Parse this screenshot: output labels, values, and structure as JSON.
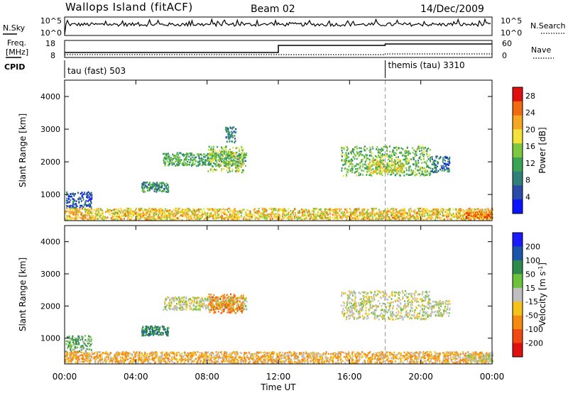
{
  "header": {
    "station": "Wallops Island (fitACF)",
    "beam": "Beam 02",
    "date": "14/Dec/2009"
  },
  "strip_labels": {
    "nsky": "N.Sky",
    "nsearch": "N.Search",
    "freq_top": "Freq.",
    "freq_unit": "[MHz]",
    "nave": "Nave",
    "cpid": "CPID"
  },
  "strip_ticks": {
    "noise_left": [
      "10^5",
      "10^0"
    ],
    "noise_right": [
      "10^5",
      "10^0"
    ],
    "freq_left": [
      "18",
      "8"
    ],
    "nave_right": [
      "60",
      "0"
    ]
  },
  "cpid_segments": [
    {
      "start_hour": 0,
      "label": "tau (fast) 503"
    },
    {
      "start_hour": 18,
      "label": "themis (tau) 3310"
    }
  ],
  "x_axis": {
    "label": "Time UT",
    "range_hours": [
      0,
      24
    ],
    "ticks": [
      {
        "hour": 0,
        "label": "00:00"
      },
      {
        "hour": 4,
        "label": "04:00"
      },
      {
        "hour": 8,
        "label": "08:00"
      },
      {
        "hour": 12,
        "label": "12:00"
      },
      {
        "hour": 16,
        "label": "16:00"
      },
      {
        "hour": 20,
        "label": "20:00"
      },
      {
        "hour": 24,
        "label": "00:00"
      }
    ]
  },
  "chart_data": [
    {
      "type": "heatmap",
      "name": "power",
      "ylabel": "Slant Range [km]",
      "ylim": [
        200,
        4500
      ],
      "yticks": [
        1000,
        2000,
        3000,
        4000
      ],
      "colorbar_label": "Power [dB]",
      "colorbar_ticks": [
        4,
        8,
        12,
        16,
        20,
        24,
        28
      ],
      "colorbar_range": [
        0,
        30
      ],
      "colors": [
        "#0a14ff",
        "#2a4aa8",
        "#2f7f7a",
        "#3aa354",
        "#7cc83f",
        "#f2e23a",
        "#f5a623",
        "#f06a10",
        "#e01010"
      ],
      "regions": [
        {
          "t": [
            5.5,
            10.2
          ],
          "r": [
            1900,
            2300
          ],
          "level": 12
        },
        {
          "t": [
            8.0,
            10.0
          ],
          "r": [
            1700,
            2500
          ],
          "level": 16
        },
        {
          "t": [
            9.0,
            9.6
          ],
          "r": [
            2600,
            3100
          ],
          "level": 8
        },
        {
          "t": [
            4.3,
            5.8
          ],
          "r": [
            1100,
            1400
          ],
          "level": 10
        },
        {
          "t": [
            0.0,
            1.5
          ],
          "r": [
            600,
            1100
          ],
          "level": 6
        },
        {
          "t": [
            15.5,
            20.5
          ],
          "r": [
            1600,
            2500
          ],
          "level": 14
        },
        {
          "t": [
            17.0,
            19.0
          ],
          "r": [
            1700,
            2100
          ],
          "level": 18
        },
        {
          "t": [
            20.5,
            21.6
          ],
          "r": [
            1700,
            2200
          ],
          "level": 8
        },
        {
          "t": [
            0.0,
            24.0
          ],
          "r": [
            250,
            600
          ],
          "level": 20
        },
        {
          "t": [
            22.5,
            24.0
          ],
          "r": [
            300,
            500
          ],
          "level": 24
        }
      ]
    },
    {
      "type": "heatmap",
      "name": "velocity",
      "ylabel": "Slant Range [km]",
      "ylim": [
        200,
        4500
      ],
      "yticks": [
        1000,
        2000,
        3000,
        4000
      ],
      "colorbar_label": "Velocity [m s^-1]",
      "colorbar_ticks": [
        200,
        100,
        50,
        15,
        -15,
        -50,
        -100,
        -200
      ],
      "colors": [
        "#1a1aff",
        "#1a55aa",
        "#2e8a4a",
        "#6cc23c",
        "#bfbfbf",
        "#f5c21a",
        "#f58a10",
        "#f04a10",
        "#e01010"
      ],
      "regions": [
        {
          "t": [
            5.5,
            10.2
          ],
          "r": [
            1900,
            2300
          ],
          "velocity": 0
        },
        {
          "t": [
            8.0,
            10.0
          ],
          "r": [
            1800,
            2400
          ],
          "velocity": -60
        },
        {
          "t": [
            4.3,
            5.8
          ],
          "r": [
            1100,
            1400
          ],
          "velocity": 60
        },
        {
          "t": [
            0.0,
            1.5
          ],
          "r": [
            600,
            1100
          ],
          "velocity": 30
        },
        {
          "t": [
            15.5,
            20.5
          ],
          "r": [
            1600,
            2500
          ],
          "velocity": 0
        },
        {
          "t": [
            20.5,
            21.6
          ],
          "r": [
            1700,
            2200
          ],
          "velocity": 0
        },
        {
          "t": [
            0.0,
            24.0
          ],
          "r": [
            250,
            600
          ],
          "velocity": -30
        },
        {
          "t": [
            22.5,
            24.0
          ],
          "r": [
            300,
            500
          ],
          "velocity": 0
        }
      ]
    }
  ]
}
